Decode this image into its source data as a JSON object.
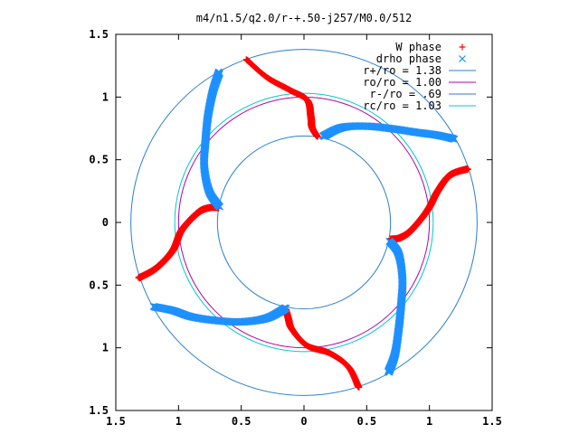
{
  "chart_data": {
    "type": "scatter",
    "title": "m4/n1.5/q2.0/r-+.50-j257/M0.0/512",
    "xlabel": "",
    "ylabel": "",
    "xlim": [
      -1.5,
      1.5
    ],
    "ylim": [
      -1.5,
      1.5
    ],
    "x_tick_labels": [
      "1.5",
      "1",
      "0.5",
      "0",
      "0.5",
      "1",
      "1.5"
    ],
    "x_tick_values": [
      -1.5,
      -1,
      -0.5,
      0,
      0.5,
      1,
      1.5
    ],
    "y_tick_labels": [
      "1.5",
      "1",
      "0.5",
      "0",
      "0.5",
      "1",
      "1.5"
    ],
    "y_tick_values": [
      1.5,
      1,
      0.5,
      0,
      -0.5,
      -1,
      -1.5
    ],
    "grid": false,
    "legend_position": "top-right",
    "legend": [
      {
        "label": "W phase",
        "kind": "marker",
        "marker": "+",
        "color": "#ff0000"
      },
      {
        "label": "drho phase",
        "kind": "marker",
        "marker": "x",
        "color": "#1e90ff"
      },
      {
        "label": "r+/ro = 1.38",
        "kind": "line",
        "color": "#2b7fd0"
      },
      {
        "label": "ro/ro = 1.00",
        "kind": "line",
        "color": "#b000b0"
      },
      {
        "label": "r-/ro = .69",
        "kind": "line",
        "color": "#2b7fd0"
      },
      {
        "label": "rc/ro = 1.03",
        "kind": "line",
        "color": "#00c8d0"
      }
    ],
    "circles": [
      {
        "name": "r+/ro = 1.38",
        "radius": 1.38,
        "color": "#2b7fd0"
      },
      {
        "name": "ro/ro = 1.00",
        "radius": 1.0,
        "color": "#b000b0"
      },
      {
        "name": "r-/ro = .69",
        "radius": 0.69,
        "color": "#2b7fd0"
      },
      {
        "name": "rc/ro = 1.03",
        "radius": 1.03,
        "color": "#00c8d0"
      }
    ],
    "series": [
      {
        "name": "W phase",
        "color": "#ff0000",
        "arms": [
          [
            [
              0.1,
              0.69
            ],
            [
              0.06,
              0.76
            ],
            [
              0.05,
              0.85
            ],
            [
              0.02,
              0.98
            ],
            [
              -0.12,
              1.06
            ],
            [
              -0.3,
              1.16
            ],
            [
              -0.46,
              1.3
            ]
          ],
          [
            [
              0.69,
              -0.13
            ],
            [
              0.76,
              -0.12
            ],
            [
              0.85,
              -0.06
            ],
            [
              0.98,
              0.1
            ],
            [
              1.06,
              0.25
            ],
            [
              1.16,
              0.38
            ],
            [
              1.3,
              0.43
            ]
          ],
          [
            [
              -0.15,
              -0.69
            ],
            [
              -0.13,
              -0.76
            ],
            [
              -0.1,
              -0.85
            ],
            [
              0.02,
              -0.98
            ],
            [
              0.2,
              -1.04
            ],
            [
              0.35,
              -1.15
            ],
            [
              0.43,
              -1.31
            ]
          ],
          [
            [
              -0.69,
              0.12
            ],
            [
              -0.76,
              0.12
            ],
            [
              -0.85,
              0.08
            ],
            [
              -0.98,
              -0.06
            ],
            [
              -1.05,
              -0.22
            ],
            [
              -1.18,
              -0.36
            ],
            [
              -1.32,
              -0.44
            ]
          ]
        ]
      },
      {
        "name": "drho phase",
        "color": "#1e90ff",
        "arms": [
          [
            [
              0.15,
              0.69
            ],
            [
              0.3,
              0.76
            ],
            [
              0.5,
              0.77
            ],
            [
              0.7,
              0.75
            ],
            [
              0.9,
              0.72
            ],
            [
              1.05,
              0.7
            ],
            [
              1.19,
              0.67
            ]
          ],
          [
            [
              0.68,
              -0.15
            ],
            [
              0.75,
              -0.25
            ],
            [
              0.78,
              -0.45
            ],
            [
              0.77,
              -0.65
            ],
            [
              0.75,
              -0.85
            ],
            [
              0.72,
              -1.05
            ],
            [
              0.67,
              -1.19
            ]
          ],
          [
            [
              -0.15,
              -0.68
            ],
            [
              -0.3,
              -0.76
            ],
            [
              -0.5,
              -0.79
            ],
            [
              -0.7,
              -0.78
            ],
            [
              -0.9,
              -0.75
            ],
            [
              -1.05,
              -0.7
            ],
            [
              -1.2,
              -0.67
            ]
          ],
          [
            [
              -0.68,
              0.13
            ],
            [
              -0.76,
              0.25
            ],
            [
              -0.8,
              0.45
            ],
            [
              -0.79,
              0.65
            ],
            [
              -0.77,
              0.85
            ],
            [
              -0.73,
              1.05
            ],
            [
              -0.68,
              1.2
            ]
          ]
        ]
      }
    ]
  }
}
